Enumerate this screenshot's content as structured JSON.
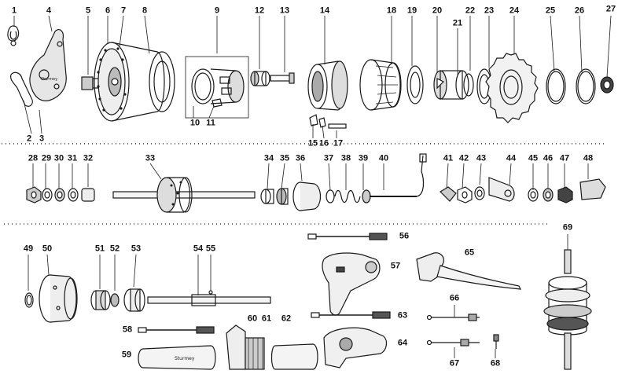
{
  "labels": {
    "1": "1",
    "2": "2",
    "3": "3",
    "4": "4",
    "5": "5",
    "6": "6",
    "7": "7",
    "8": "8",
    "9": "9",
    "10": "10",
    "11": "11",
    "12": "12",
    "13": "13",
    "14": "14",
    "15": "15",
    "16": "16",
    "17": "17",
    "18": "18",
    "19": "19",
    "20": "20",
    "21": "21",
    "22": "22",
    "23": "23",
    "24": "24",
    "25": "25",
    "26": "26",
    "27": "27",
    "28": "28",
    "29": "29",
    "30": "30",
    "31": "31",
    "32": "32",
    "33": "33",
    "34": "34",
    "35": "35",
    "36": "36",
    "37": "37",
    "38": "38",
    "39": "39",
    "40": "40",
    "41": "41",
    "42": "42",
    "43": "43",
    "44": "44",
    "45": "45",
    "46": "46",
    "47": "47",
    "48": "48",
    "49": "49",
    "50": "50",
    "51": "51",
    "52": "52",
    "53": "53",
    "54": "54",
    "55": "55",
    "56": "56",
    "57": "57",
    "58": "58",
    "59": "59",
    "60": "60",
    "61": "61",
    "62": "62",
    "63": "63",
    "64": "64",
    "65": "65",
    "66": "66",
    "67": "67",
    "68": "68",
    "69": "69"
  },
  "colors": {
    "ink": "#1a1a1a",
    "paper": "#ffffff",
    "shade": "#d9d9d9",
    "dark": "#555555"
  }
}
